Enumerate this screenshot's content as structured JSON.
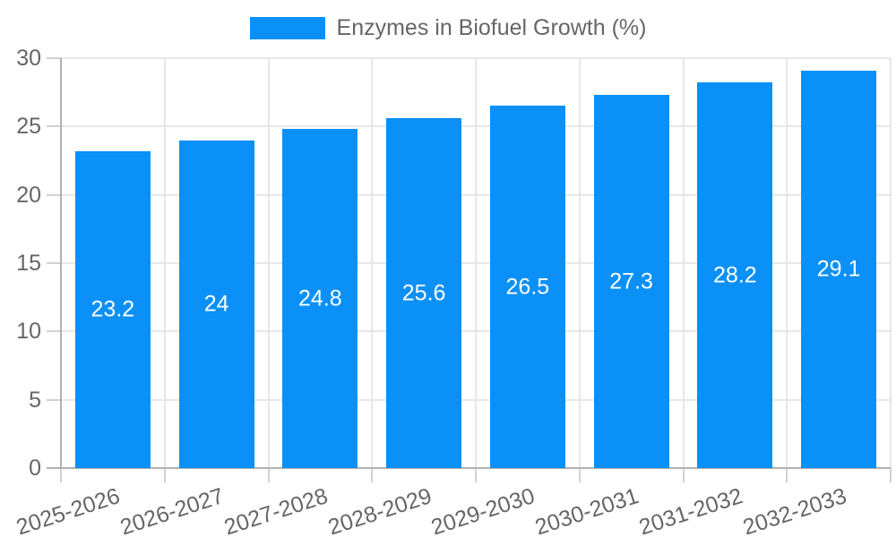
{
  "chart_data": {
    "type": "bar",
    "title": "",
    "legend_label": "Enzymes in Biofuel Growth (%)",
    "legend_position": "top",
    "categories": [
      "2025-2026",
      "2026-2027",
      "2027-2028",
      "2028-2029",
      "2029-2030",
      "2030-2031",
      "2031-2032",
      "2032-2033"
    ],
    "values": [
      23.2,
      24,
      24.8,
      25.6,
      26.5,
      27.3,
      28.2,
      29.1
    ],
    "value_labels": [
      "23.2",
      "24",
      "24.8",
      "25.6",
      "26.5",
      "27.3",
      "28.2",
      "29.1"
    ],
    "xlabel": "",
    "ylabel": "",
    "ylim": [
      0,
      30
    ],
    "yticks": [
      0,
      5,
      10,
      15,
      20,
      25,
      30
    ],
    "grid": true,
    "x_label_rotation_deg": -18,
    "bar_color": "#0a90f6",
    "value_label_color": "#ffffff",
    "axis_color": "#b1b1b1",
    "grid_color": "#e7e7e7",
    "tick_color": "#d2d2d2",
    "label_color": "#666666"
  }
}
